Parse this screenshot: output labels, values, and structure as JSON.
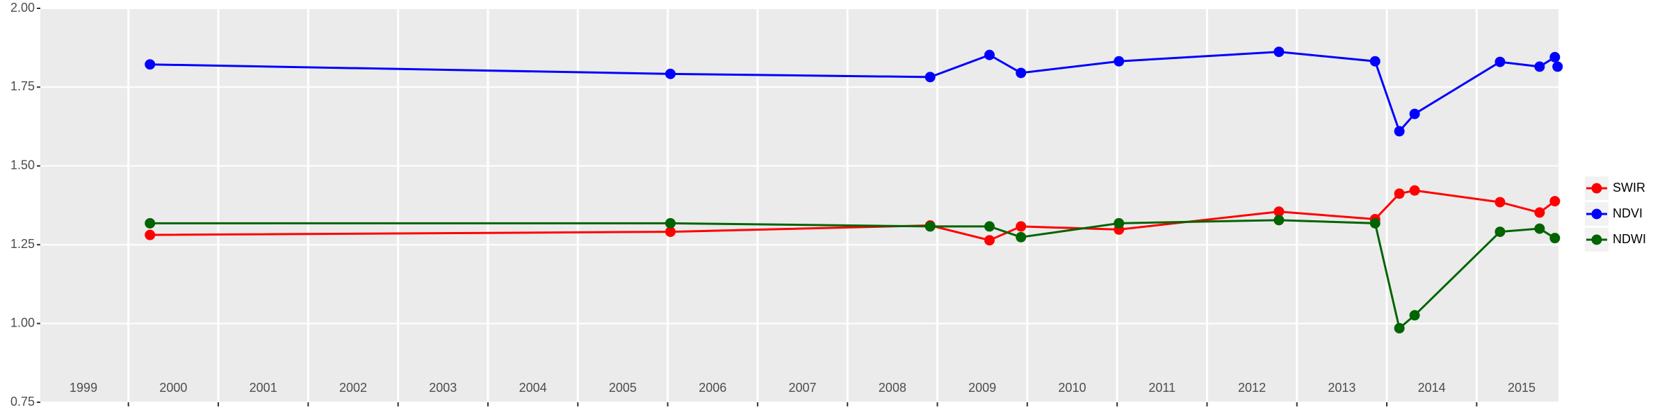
{
  "chart_data": {
    "type": "line",
    "x": [
      2000.24,
      2006.03,
      2008.92,
      2009.58,
      2009.93,
      2011.02,
      2012.8,
      2013.87,
      2014.14,
      2014.31,
      2015.26,
      2015.7,
      2015.87,
      2015.9
    ],
    "series": [
      {
        "name": "SWIR",
        "color": "#ff0000",
        "values": [
          1.281,
          1.291,
          1.311,
          1.264,
          1.308,
          1.298,
          1.355,
          1.331,
          1.412,
          1.422,
          1.385,
          1.352,
          1.388,
          null
        ]
      },
      {
        "name": "NDVI",
        "color": "#0000ff",
        "values": [
          1.822,
          1.792,
          1.782,
          1.852,
          1.795,
          1.832,
          1.862,
          1.832,
          1.61,
          1.665,
          1.83,
          1.815,
          1.845,
          1.815
        ]
      },
      {
        "name": "NDWI",
        "color": "#006400",
        "values": [
          1.318,
          1.318,
          1.308,
          1.308,
          1.274,
          1.318,
          1.328,
          1.318,
          0.985,
          1.026,
          1.291,
          1.301,
          1.271,
          null
        ]
      }
    ],
    "xlim": [
      1999.02,
      2015.91
    ],
    "xticks": [
      {
        "value": 1999.5,
        "label": "1999"
      },
      {
        "value": 2000.5,
        "label": "2000"
      },
      {
        "value": 2001.5,
        "label": "2001"
      },
      {
        "value": 2002.5,
        "label": "2002"
      },
      {
        "value": 2003.5,
        "label": "2003"
      },
      {
        "value": 2004.5,
        "label": "2004"
      },
      {
        "value": 2005.5,
        "label": "2005"
      },
      {
        "value": 2006.5,
        "label": "2006"
      },
      {
        "value": 2007.5,
        "label": "2007"
      },
      {
        "value": 2008.5,
        "label": "2008"
      },
      {
        "value": 2009.5,
        "label": "2009"
      },
      {
        "value": 2010.5,
        "label": "2010"
      },
      {
        "value": 2011.5,
        "label": "2011"
      },
      {
        "value": 2012.5,
        "label": "2012"
      },
      {
        "value": 2013.5,
        "label": "2013"
      },
      {
        "value": 2014.5,
        "label": "2014"
      },
      {
        "value": 2015.5,
        "label": "2015"
      }
    ],
    "xgrid": [
      2000,
      2001,
      2002,
      2003,
      2004,
      2005,
      2006,
      2007,
      2008,
      2009,
      2010,
      2011,
      2012,
      2013,
      2014,
      2015
    ],
    "ylim": [
      0.75,
      2.0
    ],
    "yticks": [
      {
        "value": 0.75,
        "label": "0.75"
      },
      {
        "value": 1.0,
        "label": "1.00"
      },
      {
        "value": 1.25,
        "label": "1.25"
      },
      {
        "value": 1.5,
        "label": "1.50"
      },
      {
        "value": 1.75,
        "label": "1.75"
      },
      {
        "value": 2.0,
        "label": "2.00"
      }
    ],
    "grid": true,
    "legend": "right"
  }
}
